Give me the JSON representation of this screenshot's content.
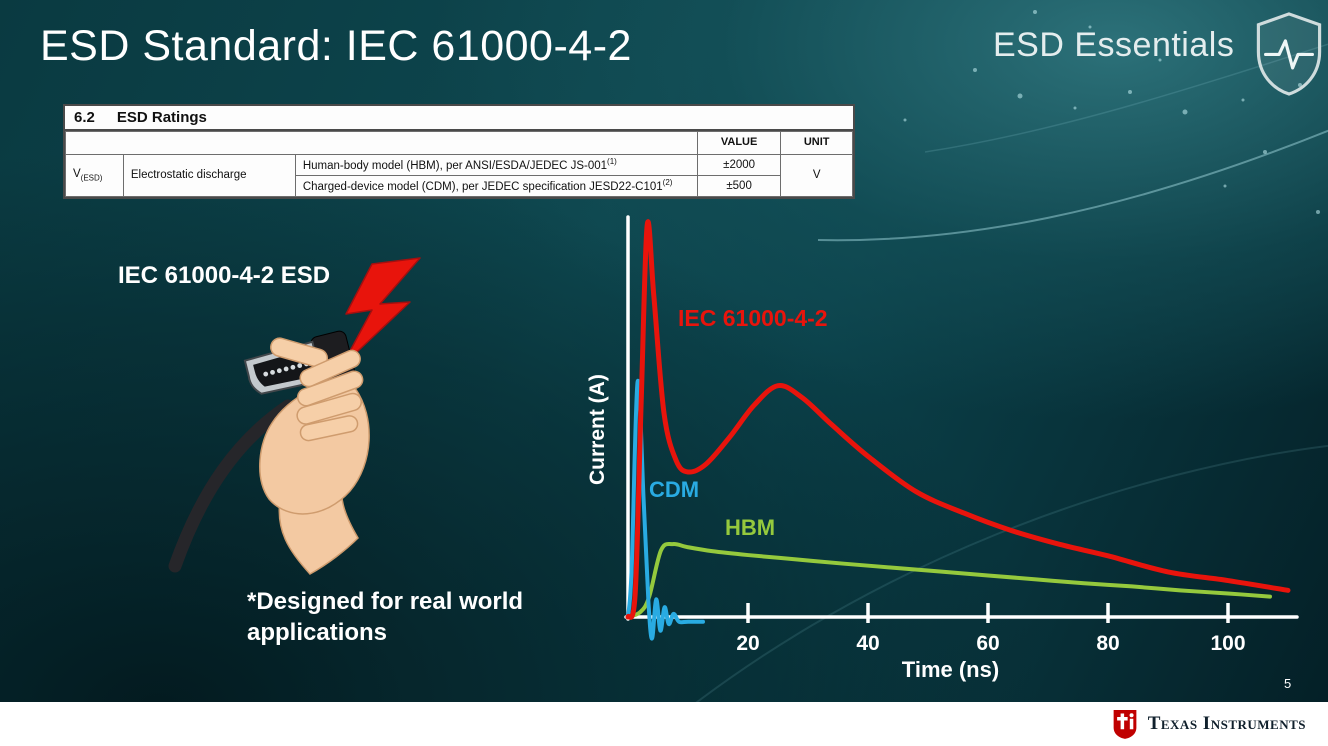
{
  "slide": {
    "title": "ESD Standard: IEC 61000-4-2",
    "brand": "ESD Essentials",
    "page_number": "5",
    "footer_logo_text": "Texas Instruments"
  },
  "ratings_table": {
    "section_number": "6.2",
    "section_title": "ESD Ratings",
    "headers": {
      "value": "VALUE",
      "unit": "UNIT"
    },
    "symbol": "V",
    "symbol_subscript": "(ESD)",
    "parameter": "Electrostatic discharge",
    "rows": [
      {
        "description": "Human-body model (HBM), per ANSI/ESDA/JEDEC JS-001",
        "footnote": "(1)",
        "value": "±2000"
      },
      {
        "description": "Charged-device model (CDM), per JEDEC specification JESD22-C101",
        "footnote": "(2)",
        "value": "±500"
      }
    ],
    "unit": "V"
  },
  "left_panel": {
    "label": "IEC 61000-4-2 ESD",
    "note": "*Designed for real world applications"
  },
  "chart_data": {
    "type": "line",
    "title": "",
    "xlabel": "Time (ns)",
    "ylabel": "Current (A)",
    "xlim": [
      0,
      111
    ],
    "ylim": [
      -0.08,
      1.05
    ],
    "x_ticks": [
      20,
      40,
      60,
      80,
      100
    ],
    "grid": false,
    "legend": "inline-labels",
    "series": [
      {
        "name": "IEC 61000-4-2",
        "color": "#e8140c",
        "points": [
          [
            0,
            0
          ],
          [
            1.2,
            0.06
          ],
          [
            2.2,
            0.55
          ],
          [
            3.2,
            1.0
          ],
          [
            4.3,
            0.82
          ],
          [
            6,
            0.52
          ],
          [
            8,
            0.4
          ],
          [
            10,
            0.37
          ],
          [
            13,
            0.39
          ],
          [
            17,
            0.46
          ],
          [
            21,
            0.54
          ],
          [
            25,
            0.59
          ],
          [
            29,
            0.56
          ],
          [
            34,
            0.49
          ],
          [
            40,
            0.41
          ],
          [
            48,
            0.32
          ],
          [
            56,
            0.265
          ],
          [
            64,
            0.22
          ],
          [
            72,
            0.185
          ],
          [
            80,
            0.156
          ],
          [
            90,
            0.115
          ],
          [
            100,
            0.093
          ],
          [
            110,
            0.068
          ]
        ]
      },
      {
        "name": "CDM",
        "color": "#29abe2",
        "points": [
          [
            0,
            0
          ],
          [
            0.6,
            0.12
          ],
          [
            1.6,
            0.6
          ],
          [
            2.6,
            0.3
          ],
          [
            3.4,
            0.04
          ],
          [
            4.0,
            -0.055
          ],
          [
            4.7,
            0.045
          ],
          [
            5.4,
            -0.035
          ],
          [
            6.1,
            0.025
          ],
          [
            6.8,
            -0.018
          ],
          [
            7.6,
            0.008
          ],
          [
            8.5,
            -0.012
          ],
          [
            10,
            -0.012
          ],
          [
            12.5,
            -0.012
          ]
        ]
      },
      {
        "name": "HBM",
        "color": "#95c93d",
        "points": [
          [
            0,
            0
          ],
          [
            2,
            0.012
          ],
          [
            3.5,
            0.05
          ],
          [
            5.5,
            0.17
          ],
          [
            7.5,
            0.186
          ],
          [
            10,
            0.178
          ],
          [
            14,
            0.168
          ],
          [
            20,
            0.158
          ],
          [
            28,
            0.147
          ],
          [
            36,
            0.136
          ],
          [
            44,
            0.126
          ],
          [
            52,
            0.116
          ],
          [
            60,
            0.106
          ],
          [
            68,
            0.096
          ],
          [
            76,
            0.086
          ],
          [
            84,
            0.078
          ],
          [
            92,
            0.068
          ],
          [
            100,
            0.06
          ],
          [
            107,
            0.052
          ]
        ]
      }
    ]
  }
}
